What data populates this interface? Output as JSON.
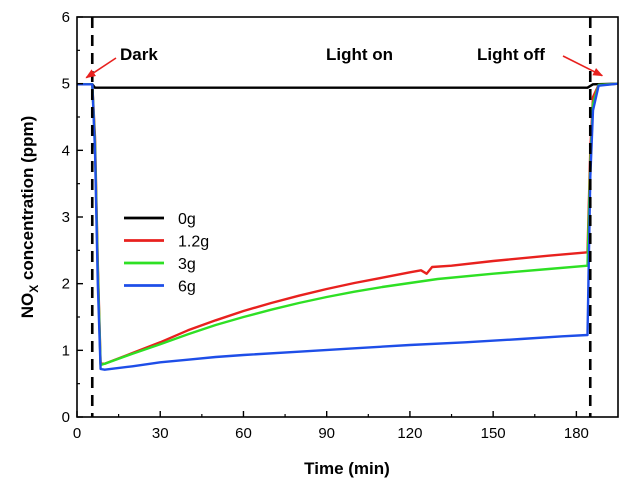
{
  "chart_data": {
    "type": "line",
    "xlabel": "Time (min)",
    "ylabel_prefix": "NO",
    "ylabel_sub": "X",
    "ylabel_suffix": " concentration (ppm)",
    "xlim": [
      0,
      195
    ],
    "ylim": [
      0,
      6
    ],
    "xticks": [
      0,
      30,
      60,
      90,
      120,
      150,
      180
    ],
    "yticks": [
      0,
      1,
      2,
      3,
      4,
      5,
      6
    ],
    "grid": false,
    "legend_position": "left-center",
    "vlines": [
      5.5,
      185
    ],
    "annotations": [
      {
        "text": "Dark",
        "x": 5.5,
        "y": 5.0,
        "arrow": true
      },
      {
        "text": "Light on",
        "x": 100,
        "y": 5.0,
        "arrow": false
      },
      {
        "text": "Light off",
        "x": 185,
        "y": 5.0,
        "arrow": true
      }
    ],
    "colors": {
      "axis": "#000000",
      "annotation_arrow": "#e8211e"
    },
    "series": [
      {
        "name": "0g",
        "color": "#000000",
        "points": [
          [
            0,
            4.99
          ],
          [
            5.5,
            4.99
          ],
          [
            6.5,
            4.94
          ],
          [
            30,
            4.94
          ],
          [
            60,
            4.94
          ],
          [
            90,
            4.94
          ],
          [
            120,
            4.94
          ],
          [
            150,
            4.94
          ],
          [
            184,
            4.94
          ],
          [
            186,
            4.99
          ],
          [
            195,
            5.0
          ]
        ]
      },
      {
        "name": "1.2g",
        "color": "#e8211e",
        "points": [
          [
            0,
            4.99
          ],
          [
            5.5,
            4.99
          ],
          [
            6.5,
            4.2
          ],
          [
            7.5,
            2.3
          ],
          [
            8.5,
            0.8
          ],
          [
            10,
            0.8
          ],
          [
            20,
            0.96
          ],
          [
            30,
            1.12
          ],
          [
            40,
            1.3
          ],
          [
            50,
            1.45
          ],
          [
            60,
            1.59
          ],
          [
            70,
            1.71
          ],
          [
            80,
            1.82
          ],
          [
            90,
            1.92
          ],
          [
            100,
            2.01
          ],
          [
            110,
            2.09
          ],
          [
            120,
            2.17
          ],
          [
            124,
            2.2
          ],
          [
            126,
            2.15
          ],
          [
            128,
            2.25
          ],
          [
            135,
            2.27
          ],
          [
            150,
            2.34
          ],
          [
            170,
            2.42
          ],
          [
            184,
            2.47
          ],
          [
            185,
            4.0
          ],
          [
            186,
            4.8
          ],
          [
            188,
            4.98
          ],
          [
            195,
            5.0
          ]
        ]
      },
      {
        "name": "3g",
        "color": "#2ee024",
        "points": [
          [
            0,
            4.99
          ],
          [
            5.5,
            4.99
          ],
          [
            6.5,
            4.1
          ],
          [
            7.5,
            2.2
          ],
          [
            8.5,
            0.78
          ],
          [
            10,
            0.8
          ],
          [
            20,
            0.95
          ],
          [
            30,
            1.09
          ],
          [
            40,
            1.24
          ],
          [
            50,
            1.38
          ],
          [
            60,
            1.5
          ],
          [
            70,
            1.61
          ],
          [
            80,
            1.71
          ],
          [
            90,
            1.8
          ],
          [
            100,
            1.88
          ],
          [
            110,
            1.95
          ],
          [
            120,
            2.01
          ],
          [
            130,
            2.07
          ],
          [
            150,
            2.15
          ],
          [
            170,
            2.22
          ],
          [
            184,
            2.27
          ],
          [
            185,
            3.8
          ],
          [
            186,
            4.7
          ],
          [
            188,
            4.98
          ],
          [
            195,
            5.0
          ]
        ]
      },
      {
        "name": "6g",
        "color": "#1e4ee8",
        "points": [
          [
            0,
            4.99
          ],
          [
            5.5,
            4.99
          ],
          [
            6.5,
            4.0
          ],
          [
            7.5,
            2.0
          ],
          [
            8.5,
            0.72
          ],
          [
            10,
            0.71
          ],
          [
            20,
            0.76
          ],
          [
            30,
            0.82
          ],
          [
            40,
            0.86
          ],
          [
            50,
            0.9
          ],
          [
            60,
            0.93
          ],
          [
            80,
            0.98
          ],
          [
            100,
            1.03
          ],
          [
            120,
            1.08
          ],
          [
            140,
            1.12
          ],
          [
            160,
            1.17
          ],
          [
            175,
            1.21
          ],
          [
            184,
            1.23
          ],
          [
            185,
            3.6
          ],
          [
            186,
            4.6
          ],
          [
            188,
            4.97
          ],
          [
            195,
            5.0
          ]
        ]
      }
    ]
  }
}
